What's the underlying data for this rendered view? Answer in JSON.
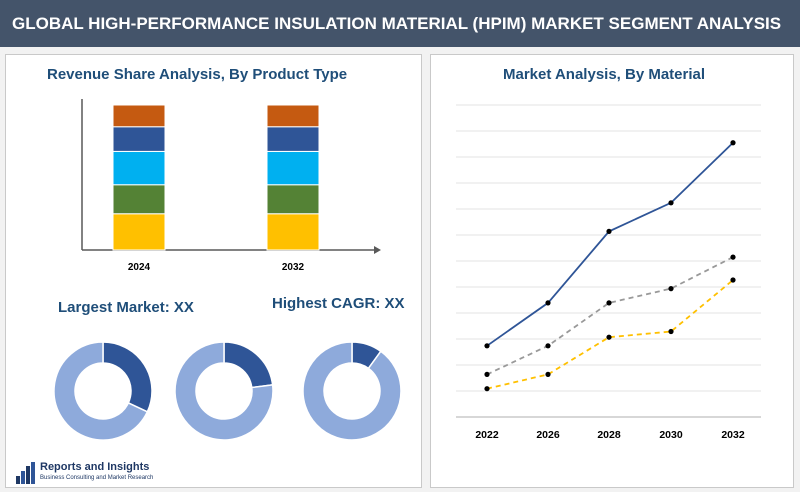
{
  "header": {
    "title": "GLOBAL HIGH-PERFORMANCE INSULATION MATERIAL (HPIM) MARKET SEGMENT ANALYSIS"
  },
  "left": {
    "bar_title": "Revenue Share Analysis, By Product Type",
    "largest_label": "Largest Market: XX",
    "cagr_label": "Highest CAGR: XX"
  },
  "right": {
    "line_title": "Market Analysis, By Material"
  },
  "logo": {
    "name": "Reports and Insights",
    "tagline": "Business Consulting and Market Research"
  },
  "colors": {
    "header_bg": "#44546a",
    "title_text": "#1f4e79",
    "donut_light": "#8eaadb",
    "donut_dark": "#2f5597"
  },
  "chart_data": [
    {
      "type": "bar",
      "stacked": true,
      "title": "Revenue Share Analysis, By Product Type",
      "categories": [
        "2024",
        "2032"
      ],
      "series": [
        {
          "color": "#ffc000",
          "values": [
            25,
            25
          ]
        },
        {
          "color": "#548235",
          "values": [
            20,
            20
          ]
        },
        {
          "color": "#00b0f0",
          "values": [
            23,
            23
          ]
        },
        {
          "color": "#2f5597",
          "values": [
            17,
            17
          ]
        },
        {
          "color": "#c55a11",
          "values": [
            15,
            15
          ]
        }
      ],
      "ylim": [
        0,
        100
      ]
    },
    {
      "type": "pie",
      "donut": true,
      "slices": [
        {
          "color": "#2f5597",
          "value": 32
        },
        {
          "color": "#8eaadb",
          "value": 68
        }
      ]
    },
    {
      "type": "pie",
      "donut": true,
      "slices": [
        {
          "color": "#2f5597",
          "value": 23
        },
        {
          "color": "#8eaadb",
          "value": 77
        }
      ]
    },
    {
      "type": "pie",
      "donut": true,
      "slices": [
        {
          "color": "#2f5597",
          "value": 10
        },
        {
          "color": "#8eaadb",
          "value": 90
        }
      ]
    },
    {
      "type": "line",
      "title": "Market Analysis, By Material",
      "x": [
        "2022",
        "2026",
        "2028",
        "2030",
        "2032"
      ],
      "series": [
        {
          "color": "#2f5597",
          "dash": false,
          "values": [
            2.0,
            3.5,
            6.0,
            7.0,
            9.1
          ]
        },
        {
          "color": "#999999",
          "dash": true,
          "values": [
            1.0,
            2.0,
            3.5,
            4.0,
            5.1
          ]
        },
        {
          "color": "#ffc000",
          "dash": true,
          "values": [
            0.5,
            1.0,
            2.3,
            2.5,
            4.3
          ]
        }
      ],
      "ylim": [
        0,
        10
      ],
      "grid": true
    }
  ]
}
